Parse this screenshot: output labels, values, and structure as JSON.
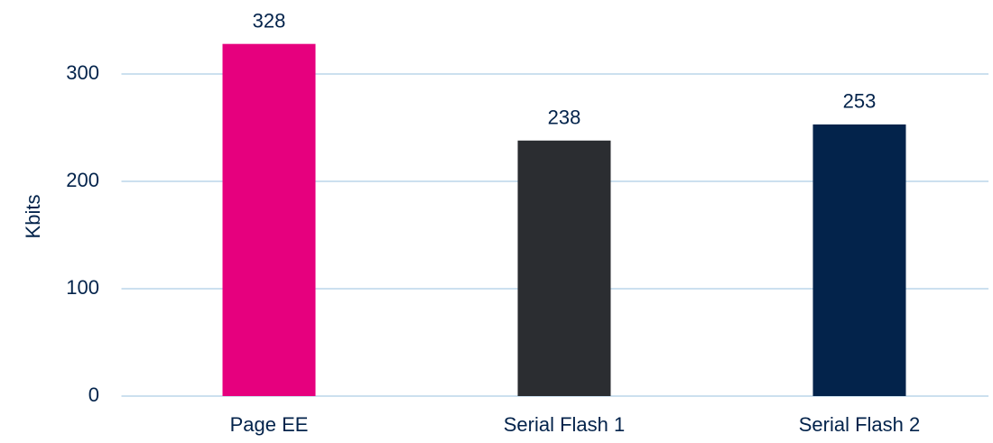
{
  "chart_data": {
    "type": "bar",
    "ylabel": "Kbits",
    "categories": [
      "Page EE",
      "Serial Flash 1",
      "Serial Flash 2"
    ],
    "values": [
      328,
      238,
      253
    ],
    "colors": [
      "#e6007e",
      "#2b2d31",
      "#03234b"
    ],
    "ylim": [
      0,
      350
    ],
    "yticks": [
      0,
      100,
      200,
      300
    ],
    "grid": true
  }
}
